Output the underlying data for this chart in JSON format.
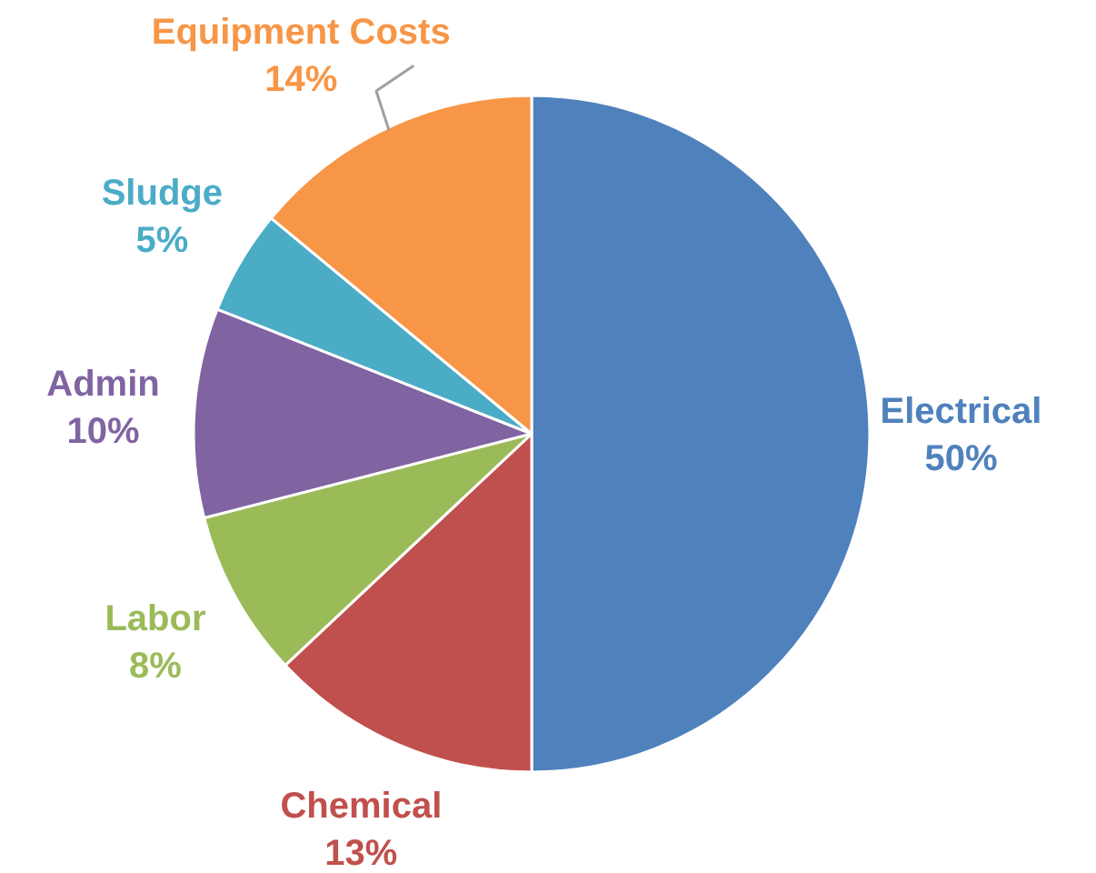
{
  "chart_data": {
    "type": "pie",
    "categories": [
      "Electrical",
      "Chemical",
      "Labor",
      "Admin",
      "Sludge",
      "Equipment Costs"
    ],
    "values": [
      50,
      13,
      8,
      10,
      5,
      14
    ],
    "colors": [
      "#4f81bd",
      "#c0504d",
      "#9bbb59",
      "#8064a2",
      "#4bacc6",
      "#f79646"
    ],
    "value_labels": [
      "50%",
      "13%",
      "8%",
      "10%",
      "5%",
      "14%"
    ]
  }
}
